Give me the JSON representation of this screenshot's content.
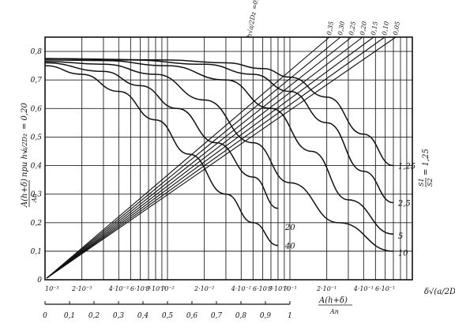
{
  "chart_data": {
    "type": "line",
    "y_axis": {
      "label": "A(h+δ)/An при h√(a/2Dz) = 0,20",
      "label_main": "A(h+δ)",
      "label_den": "An",
      "label_rest": "при h√",
      "label_rad": "a/2Dz",
      "label_eq": "= 0,20",
      "range": [
        0,
        0.85
      ],
      "ticks": [
        "0",
        "0,1",
        "0,2",
        "0,3",
        "0,4",
        "0,5",
        "0,6",
        "0,7",
        "0,8"
      ],
      "tick_values": [
        0,
        0.1,
        0.2,
        0.3,
        0.4,
        0.5,
        0.6,
        0.7,
        0.8
      ]
    },
    "x_axis_top": {
      "label": "δ√(a/2Dz)",
      "scale": "log",
      "range": [
        0.001,
        1
      ],
      "ticks": [
        {
          "v": 0.001,
          "t": "10⁻³"
        },
        {
          "v": 0.002,
          "t": "2·10⁻³"
        },
        {
          "v": 0.004,
          "t": "4·10⁻³"
        },
        {
          "v": 0.006,
          "t": "6·10⁻³"
        },
        {
          "v": 0.008,
          "t": "8·10⁻³"
        },
        {
          "v": 0.01,
          "t": "10⁻²"
        },
        {
          "v": 0.02,
          "t": "2·10⁻²"
        },
        {
          "v": 0.04,
          "t": "4·10⁻²"
        },
        {
          "v": 0.06,
          "t": "6·10⁻²"
        },
        {
          "v": 0.08,
          "t": "8·10⁻²"
        },
        {
          "v": 0.1,
          "t": "10⁻¹"
        },
        {
          "v": 0.2,
          "t": "2·10⁻¹"
        },
        {
          "v": 0.4,
          "t": "4·10⁻¹"
        },
        {
          "v": 0.6,
          "t": "6·10⁻¹"
        }
      ]
    },
    "x_axis_bottom": {
      "label": "A(h+δ)/An",
      "label_main": "A(h+δ)",
      "label_den": "An",
      "range": [
        0,
        1
      ],
      "ticks": [
        "0",
        "0,1",
        "0,2",
        "0,3",
        "0,4",
        "0,5",
        "0,6",
        "0,7",
        "0,8",
        "0,9",
        "1"
      ]
    },
    "curve_family_label": "S1/S2 = 1,25",
    "curve_family_label_parts": {
      "s1": "S1",
      "s2": "S2",
      "eq": "= 1,25"
    },
    "curves": [
      {
        "name": "1,25",
        "points": [
          [
            0.001,
            0.775
          ],
          [
            0.01,
            0.77
          ],
          [
            0.03,
            0.76
          ],
          [
            0.06,
            0.74
          ],
          [
            0.1,
            0.71
          ],
          [
            0.2,
            0.64
          ],
          [
            0.4,
            0.51
          ],
          [
            0.7,
            0.4
          ]
        ]
      },
      {
        "name": "2,5",
        "points": [
          [
            0.001,
            0.775
          ],
          [
            0.005,
            0.77
          ],
          [
            0.02,
            0.755
          ],
          [
            0.05,
            0.72
          ],
          [
            0.1,
            0.66
          ],
          [
            0.2,
            0.55
          ],
          [
            0.4,
            0.38
          ],
          [
            0.7,
            0.27
          ]
        ]
      },
      {
        "name": "5",
        "points": [
          [
            0.001,
            0.77
          ],
          [
            0.003,
            0.768
          ],
          [
            0.01,
            0.75
          ],
          [
            0.03,
            0.7
          ],
          [
            0.07,
            0.6
          ],
          [
            0.15,
            0.45
          ],
          [
            0.3,
            0.28
          ],
          [
            0.7,
            0.16
          ]
        ]
      },
      {
        "name": "10",
        "points": [
          [
            0.001,
            0.765
          ],
          [
            0.003,
            0.755
          ],
          [
            0.008,
            0.72
          ],
          [
            0.02,
            0.63
          ],
          [
            0.05,
            0.48
          ],
          [
            0.1,
            0.34
          ],
          [
            0.25,
            0.2
          ],
          [
            0.7,
            0.1
          ]
        ]
      },
      {
        "name": "20",
        "points": [
          [
            0.001,
            0.76
          ],
          [
            0.003,
            0.73
          ],
          [
            0.006,
            0.68
          ],
          [
            0.012,
            0.6
          ],
          [
            0.025,
            0.48
          ],
          [
            0.05,
            0.36
          ],
          [
            0.08,
            0.25
          ]
        ]
      },
      {
        "name": "40",
        "points": [
          [
            0.001,
            0.75
          ],
          [
            0.002,
            0.72
          ],
          [
            0.004,
            0.66
          ],
          [
            0.008,
            0.56
          ],
          [
            0.015,
            0.44
          ],
          [
            0.03,
            0.3
          ],
          [
            0.05,
            0.2
          ],
          [
            0.08,
            0.12
          ]
        ]
      }
    ],
    "curve_labels": [
      {
        "t": "1,25",
        "x": 0.72,
        "y": 0.4
      },
      {
        "t": "2,5",
        "x": 0.72,
        "y": 0.27
      },
      {
        "t": "5",
        "x": 0.72,
        "y": 0.155
      },
      {
        "t": "10",
        "x": 0.72,
        "y": 0.095
      },
      {
        "t": "20",
        "x": 0.086,
        "y": 0.185
      },
      {
        "t": "40",
        "x": 0.086,
        "y": 0.12
      }
    ],
    "ray_family_label": "h√(a/2Dz) = 0,35",
    "ray_family_label_parts": {
      "h": "h√",
      "rad": "a/2Dz",
      "eq": "=0,35"
    },
    "rays": [
      {
        "name": "0,35",
        "slope": 0.38
      },
      {
        "name": "0,30",
        "slope": 0.415
      },
      {
        "name": "0,25",
        "slope": 0.455
      },
      {
        "name": "0,20",
        "slope": 0.5
      },
      {
        "name": "0,15",
        "slope": 0.55
      },
      {
        "name": "0,10",
        "slope": 0.61
      },
      {
        "name": "0,05",
        "slope": 0.68
      }
    ],
    "grid": true
  }
}
